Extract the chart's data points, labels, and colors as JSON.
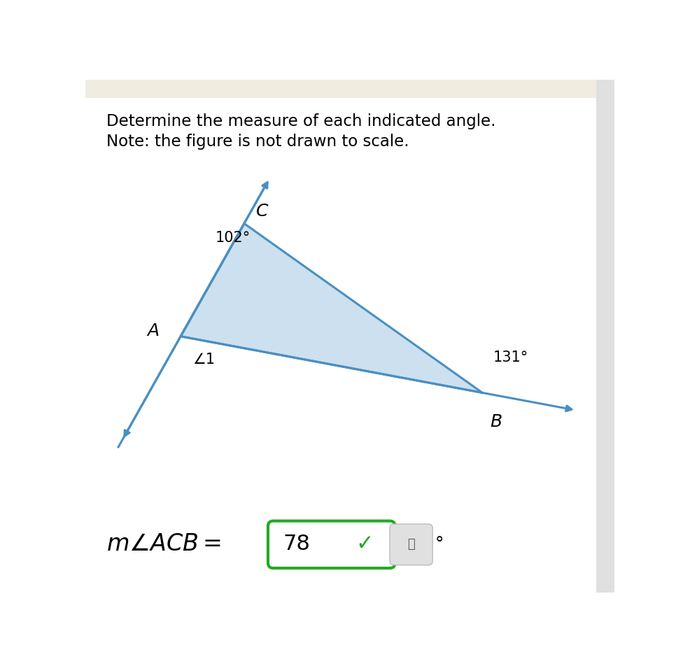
{
  "title_line1": "Determine the measure of each indicated angle.",
  "title_line2": "Note: the figure is not drawn to scale.",
  "bg_color": "#ffffff",
  "top_stripe_color": "#f0ece0",
  "right_stripe_color": "#e0e0e0",
  "triangle_fill": "#cce0f0",
  "triangle_edge_color": "#4a8fc0",
  "arrow_color": "#4a8fc0",
  "line_width": 2.2,
  "C": [
    0.3,
    0.72
  ],
  "A": [
    0.18,
    0.5
  ],
  "B": [
    0.75,
    0.39
  ],
  "label_C": "C",
  "label_A": "A",
  "label_B": "B",
  "angle_C_text": "102°",
  "angle_B_text": "131°",
  "angle_1_text": "∠1",
  "answer_value": "78",
  "answer_check": "✓",
  "degree_symbol": "°"
}
